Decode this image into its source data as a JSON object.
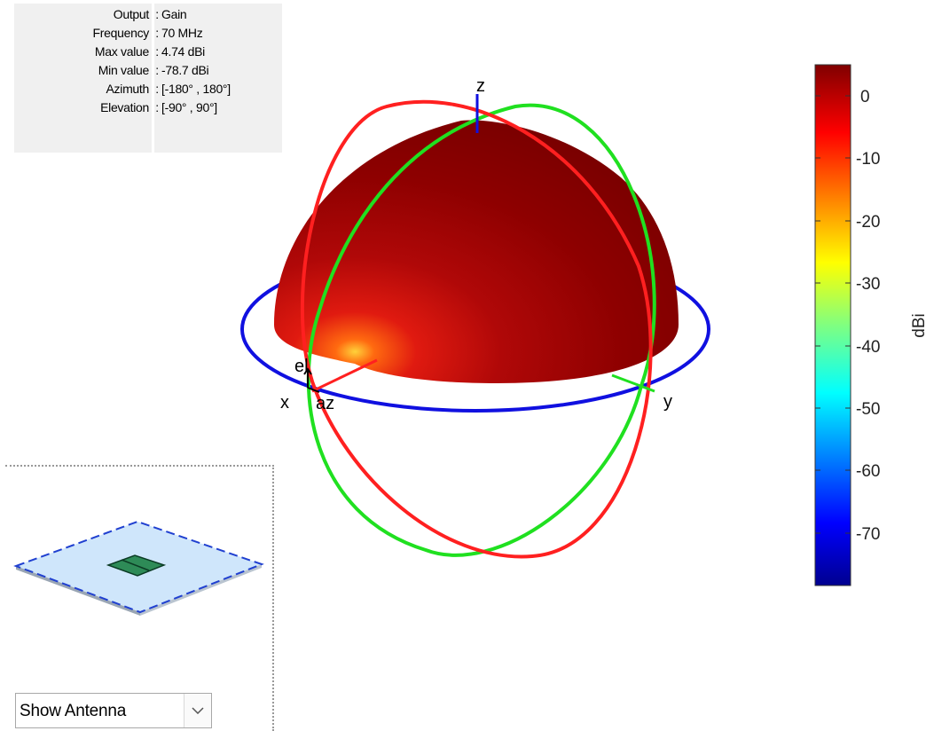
{
  "info_panel": {
    "rows": [
      {
        "key": "Output",
        "value": "Gain"
      },
      {
        "key": "Frequency",
        "value": "70 MHz"
      },
      {
        "key": "Max value",
        "value": "4.74 dBi"
      },
      {
        "key": "Min value",
        "value": "-78.7 dBi"
      },
      {
        "key": "Azimuth",
        "value": "[-180° , 180°]"
      },
      {
        "key": "Elevation",
        "value": "[-90° , 90°]"
      }
    ],
    "separator": ":"
  },
  "plot": {
    "axis_labels": {
      "x": "x",
      "y": "y",
      "z": "z",
      "az": "az",
      "el": "el"
    },
    "colors": {
      "azimuth_ring": "#1010e0",
      "elevation_ring_xz": "#ff2020",
      "elevation_ring_yz": "#20e020",
      "pattern_surface": "#b00000"
    }
  },
  "colorbar": {
    "label": "dBi",
    "ticks": [
      "0",
      "-10",
      "-20",
      "-30",
      "-40",
      "-50",
      "-60",
      "-70"
    ],
    "range": [
      -78.7,
      4.74
    ],
    "colormap": "jet"
  },
  "antenna_preview": {
    "colors": {
      "ground_plane": "#cfe6fb",
      "edge": "#2040d0",
      "patch": "#2e8b57"
    }
  },
  "view_selector": {
    "selected": "Show Antenna",
    "icon": "chevron-down-icon"
  }
}
